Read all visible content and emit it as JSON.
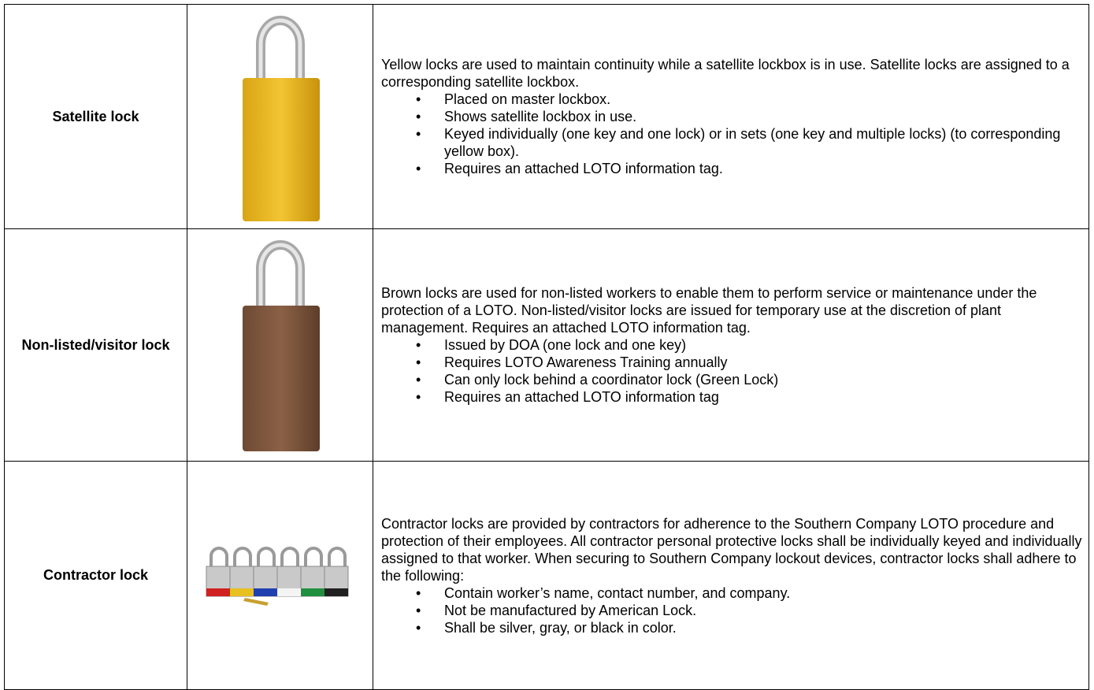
{
  "table": {
    "rows": [
      {
        "label": "Satellite lock",
        "description": "Yellow locks are used to maintain continuity while a satellite lockbox is in use. Satellite locks are assigned to a corresponding satellite lockbox.",
        "bullets": [
          "Placed on master lockbox.",
          "Shows satellite lockbox in use.",
          "Keyed individually (one key and one lock) or in sets (one key and multiple locks) (to corresponding yellow box).",
          "Requires an attached LOTO information tag."
        ]
      },
      {
        "label": "Non-listed/visitor lock",
        "description": "Brown locks are used for non-listed workers to enable them to perform service or maintenance under the protection of a LOTO.  Non-listed/visitor locks are issued for temporary use at the discretion of plant management.  Requires an attached LOTO information tag.",
        "bullets": [
          "Issued by DOA (one lock and one key)",
          "Requires LOTO Awareness Training annually",
          "Can only lock behind a coordinator lock (Green Lock)",
          "Requires an attached LOTO information tag"
        ]
      },
      {
        "label": "Contractor lock",
        "description": "Contractor locks are provided by contractors for adherence to the Southern Company LOTO procedure and protection of their employees.  All contractor personal protective locks shall be individually keyed and individually assigned to that worker.  When securing to Southern Company lockout devices, contractor locks shall adhere to the following:",
        "bullets": [
          "Contain worker’s name, contact number, and company.",
          "Not be manufactured by American Lock.",
          "Shall be silver, gray, or black in color."
        ]
      }
    ]
  }
}
